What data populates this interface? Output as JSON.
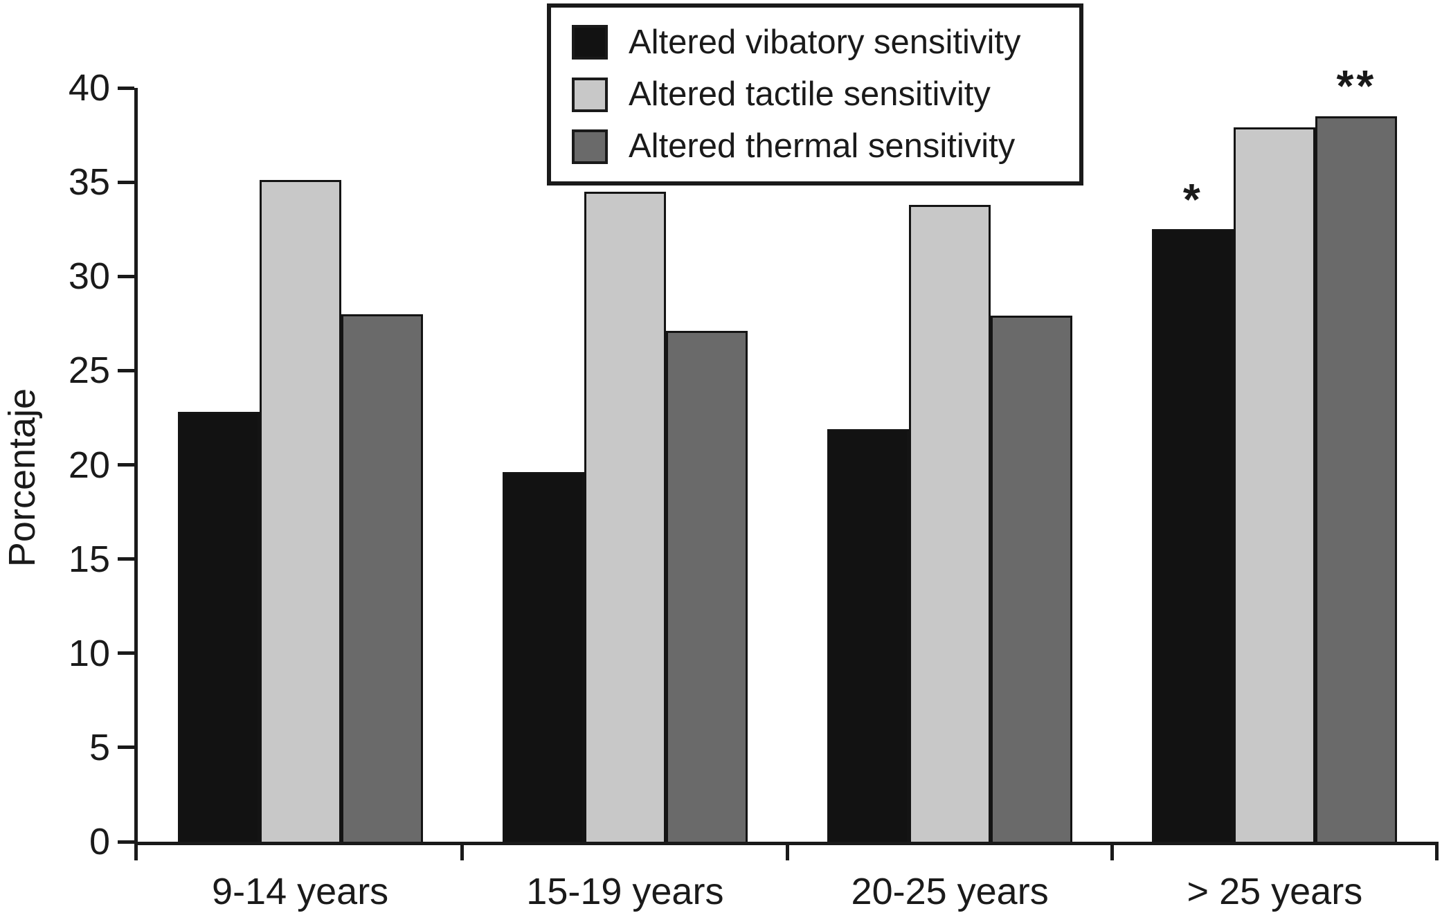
{
  "figure": {
    "background": "#ffffff",
    "text_color": "#1a1a1a"
  },
  "chart_data": {
    "type": "bar",
    "title": "",
    "xlabel": "",
    "ylabel": "Porcentaje",
    "ylim": [
      0,
      40
    ],
    "yticks": [
      0,
      5,
      10,
      15,
      20,
      25,
      30,
      35,
      40
    ],
    "grid": false,
    "legend_position": "top-center",
    "categories": [
      "9-14 years",
      "15-19 years",
      "20-25 years",
      "> 25 years"
    ],
    "series": [
      {
        "name": "Altered vibatory sensitivity",
        "color": "#121212",
        "values": [
          22.8,
          19.6,
          21.9,
          32.5
        ]
      },
      {
        "name": "Altered tactile sensitivity",
        "color": "#c8c8c8",
        "values": [
          35.1,
          34.5,
          33.8,
          37.9
        ]
      },
      {
        "name": "Altered thermal sensitivity",
        "color": "#6a6a6a",
        "values": [
          28.0,
          27.1,
          27.9,
          38.5
        ]
      }
    ],
    "annotations": [
      {
        "text": "*",
        "category_index": 3,
        "series_index": 0
      },
      {
        "text": "**",
        "category_index": 3,
        "series_index": 2
      }
    ]
  }
}
